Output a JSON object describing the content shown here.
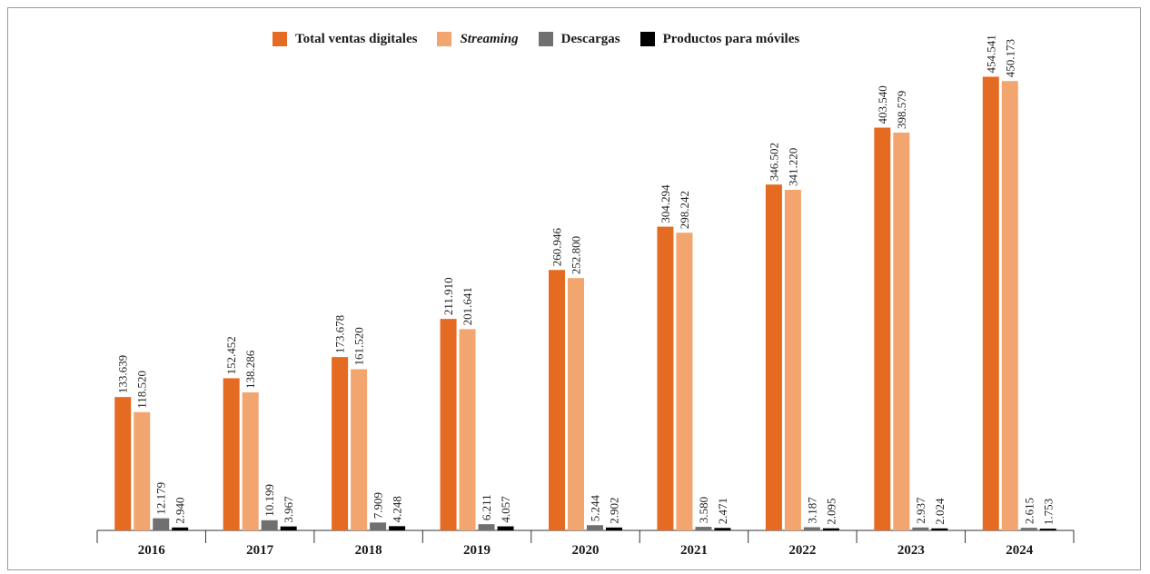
{
  "chart_data": {
    "type": "bar",
    "title": "",
    "xlabel": "",
    "ylabel": "",
    "categories": [
      "2016",
      "2017",
      "2018",
      "2019",
      "2020",
      "2021",
      "2022",
      "2023",
      "2024"
    ],
    "series": [
      {
        "name": "Total ventas digitales",
        "color": "#e56a22",
        "italic": false,
        "values": [
          133639,
          152452,
          173678,
          211910,
          260946,
          304294,
          346502,
          403540,
          454541
        ],
        "labels": [
          "133.639",
          "152.452",
          "173.678",
          "211.910",
          "260.946",
          "304.294",
          "346.502",
          "403.540",
          "454.541"
        ]
      },
      {
        "name": "Streaming",
        "color": "#f2a56e",
        "italic": true,
        "values": [
          118520,
          138286,
          161520,
          201641,
          252800,
          298242,
          341220,
          398579,
          450173
        ],
        "labels": [
          "118.520",
          "138.286",
          "161.520",
          "201.641",
          "252.800",
          "298.242",
          "341.220",
          "398.579",
          "450.173"
        ]
      },
      {
        "name": "Descargas",
        "color": "#707070",
        "italic": false,
        "values": [
          12179,
          10199,
          7909,
          6211,
          5244,
          3580,
          3187,
          2937,
          2615
        ],
        "labels": [
          "12.179",
          "10.199",
          "7.909",
          "6.211",
          "5.244",
          "3.580",
          "3.187",
          "2.937",
          "2.615"
        ]
      },
      {
        "name": "Productos para móviles",
        "color": "#000000",
        "italic": false,
        "values": [
          2940,
          3967,
          4248,
          4057,
          2902,
          2471,
          2095,
          2024,
          1753
        ],
        "labels": [
          "2.940",
          "3.967",
          "4.248",
          "4.057",
          "2.902",
          "2.471",
          "2.095",
          "2.024",
          "1.753"
        ]
      }
    ],
    "ylim": [
      0,
      475000
    ],
    "grid": false,
    "legend_position": "top-center"
  }
}
